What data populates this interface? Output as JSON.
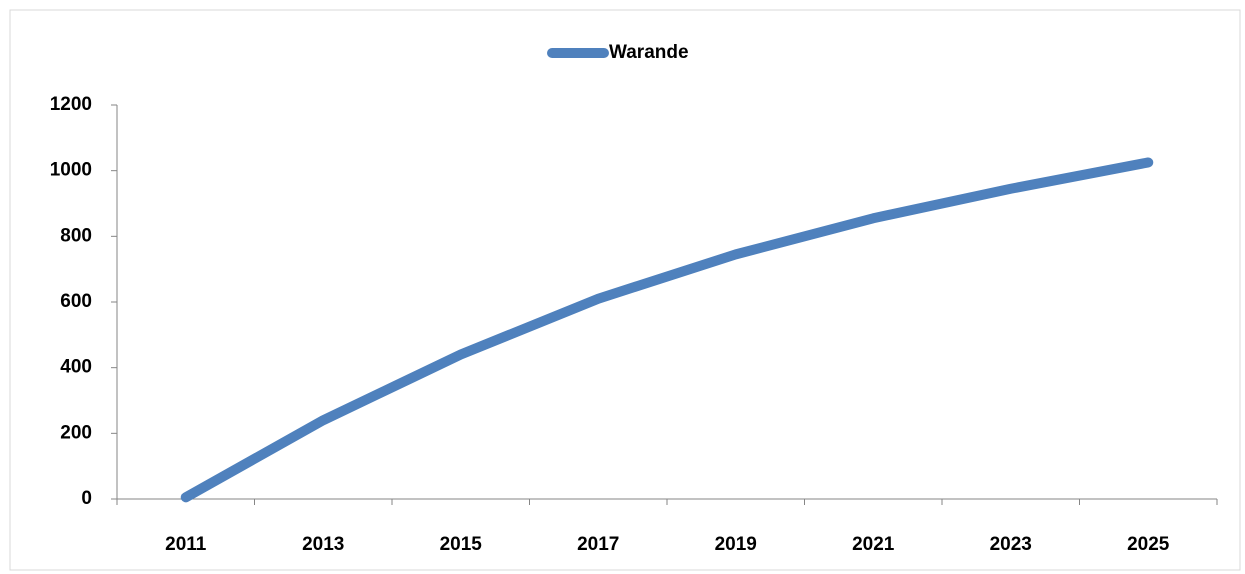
{
  "chart_data": {
    "type": "line",
    "categories": [
      "2011",
      "2013",
      "2015",
      "2017",
      "2019",
      "2021",
      "2023",
      "2025"
    ],
    "series": [
      {
        "name": "Warande",
        "color": "#4f81bd",
        "values": [
          5,
          240,
          440,
          610,
          745,
          855,
          945,
          1025
        ]
      }
    ],
    "ylim": [
      0,
      1200
    ],
    "yticks": [
      0,
      200,
      400,
      600,
      800,
      1000,
      1200
    ],
    "grid": false,
    "legend": "top"
  }
}
